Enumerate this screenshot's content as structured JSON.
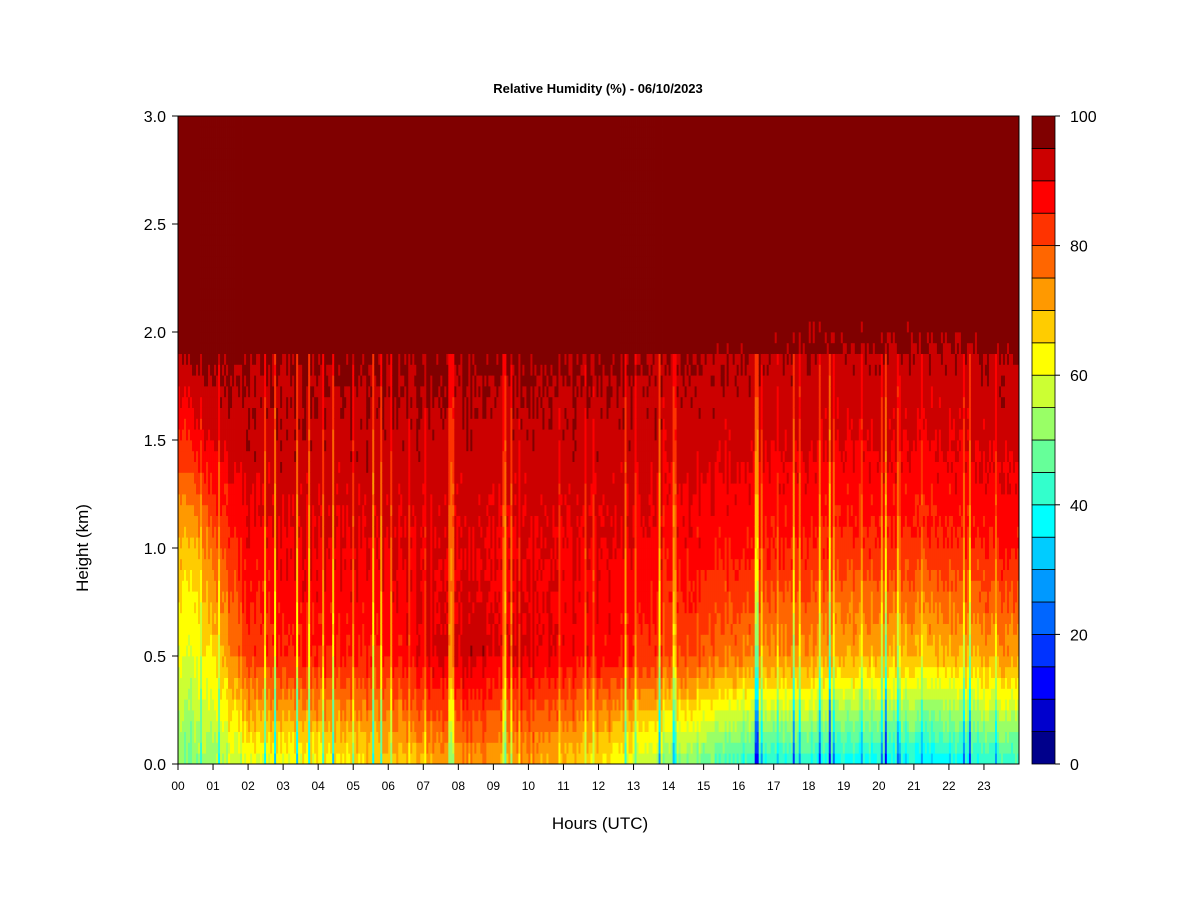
{
  "chart_data": {
    "type": "heatmap",
    "title": "Relative Humidity (%) - 06/10/2023",
    "xlabel": "Hours (UTC)",
    "ylabel": "Height (km)",
    "xlim": [
      0,
      24
    ],
    "ylim": [
      0,
      3.0
    ],
    "x_ticks": [
      "00",
      "01",
      "02",
      "03",
      "04",
      "05",
      "06",
      "07",
      "08",
      "09",
      "10",
      "11",
      "12",
      "13",
      "14",
      "15",
      "16",
      "17",
      "18",
      "19",
      "20",
      "21",
      "22",
      "23"
    ],
    "y_ticks": [
      "0.0",
      "0.5",
      "1.0",
      "1.5",
      "2.0",
      "2.5",
      "3.0"
    ],
    "colorbar": {
      "range": [
        0,
        100
      ],
      "step": 5,
      "tick_labels": [
        "0",
        "20",
        "40",
        "60",
        "80",
        "100"
      ],
      "colors": [
        "#00008B",
        "#0000CD",
        "#0000FF",
        "#0033FF",
        "#0066FF",
        "#0099FF",
        "#00CCFF",
        "#00FFFF",
        "#33FFCC",
        "#66FF99",
        "#99FF66",
        "#CCFF33",
        "#FFFF00",
        "#FFCC00",
        "#FF9900",
        "#FF6600",
        "#FF3300",
        "#FF0000",
        "#CC0000",
        "#800000"
      ]
    },
    "humidity_profiles": [
      {
        "hour": 0.0,
        "rh_surface": 55,
        "rh_0_5km": 64,
        "rh_1_0km": 72,
        "rh_1_5km": 85,
        "rh_2_0km": 100
      },
      {
        "hour": 0.5,
        "rh_surface": 52,
        "rh_0_5km": 62,
        "rh_1_0km": 70,
        "rh_1_5km": 88,
        "rh_2_0km": 100
      },
      {
        "hour": 1.0,
        "rh_surface": 55,
        "rh_0_5km": 68,
        "rh_1_0km": 80,
        "rh_1_5km": 92,
        "rh_2_0km": 100
      },
      {
        "hour": 2.0,
        "rh_surface": 62,
        "rh_0_5km": 85,
        "rh_1_0km": 90,
        "rh_1_5km": 95,
        "rh_2_0km": 97
      },
      {
        "hour": 4.0,
        "rh_surface": 65,
        "rh_0_5km": 88,
        "rh_1_0km": 92,
        "rh_1_5km": 95,
        "rh_2_0km": 98
      },
      {
        "hour": 6.0,
        "rh_surface": 70,
        "rh_0_5km": 88,
        "rh_1_0km": 92,
        "rh_1_5km": 95,
        "rh_2_0km": 98
      },
      {
        "hour": 8.0,
        "rh_surface": 75,
        "rh_0_5km": 95,
        "rh_1_0km": 92,
        "rh_1_5km": 95,
        "rh_2_0km": 98
      },
      {
        "hour": 10.0,
        "rh_surface": 75,
        "rh_0_5km": 93,
        "rh_1_0km": 92,
        "rh_1_5km": 95,
        "rh_2_0km": 98
      },
      {
        "hour": 12.0,
        "rh_surface": 68,
        "rh_0_5km": 90,
        "rh_1_0km": 92,
        "rh_1_5km": 95,
        "rh_2_0km": 98
      },
      {
        "hour": 14.0,
        "rh_surface": 55,
        "rh_0_5km": 85,
        "rh_1_0km": 90,
        "rh_1_5km": 94,
        "rh_2_0km": 97
      },
      {
        "hour": 16.0,
        "rh_surface": 45,
        "rh_0_5km": 78,
        "rh_1_0km": 88,
        "rh_1_5km": 93,
        "rh_2_0km": 97
      },
      {
        "hour": 18.0,
        "rh_surface": 42,
        "rh_0_5km": 75,
        "rh_1_0km": 86,
        "rh_1_5km": 92,
        "rh_2_0km": 96
      },
      {
        "hour": 20.0,
        "rh_surface": 40,
        "rh_0_5km": 72,
        "rh_1_0km": 85,
        "rh_1_5km": 92,
        "rh_2_0km": 96
      },
      {
        "hour": 22.0,
        "rh_surface": 40,
        "rh_0_5km": 72,
        "rh_1_0km": 86,
        "rh_1_5km": 92,
        "rh_2_0km": 96
      },
      {
        "hour": 24.0,
        "rh_surface": 45,
        "rh_0_5km": 75,
        "rh_1_0km": 88,
        "rh_1_5km": 93,
        "rh_2_0km": 97
      }
    ]
  }
}
